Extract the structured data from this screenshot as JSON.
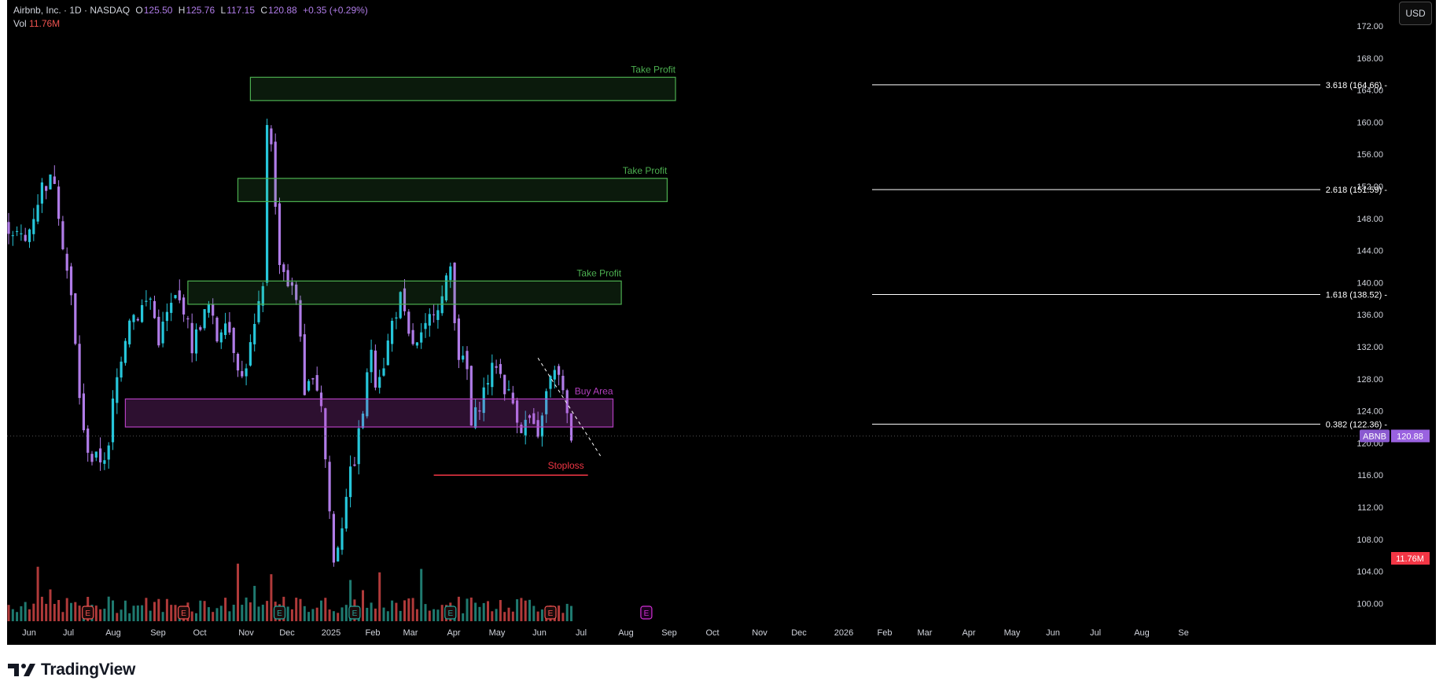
{
  "header": {
    "symbol": "Airbnb, Inc. · 1D · NASDAQ",
    "o_label": "O",
    "o_value": "125.50",
    "h_label": "H",
    "h_value": "125.76",
    "l_label": "L",
    "l_value": "117.15",
    "c_label": "C",
    "c_value": "120.88",
    "change": "+0.35 (+0.29%)",
    "vol_label": "Vol",
    "vol_value": "11.76M"
  },
  "currency_button": "USD",
  "footer": {
    "brand": "TradingView"
  },
  "colors": {
    "background": "#000000",
    "up_candle": "#26c6da",
    "down_candle": "#b07ce8",
    "volume_up": "#1f7a70",
    "volume_down": "#b03a3a",
    "take_profit": "#4caf50",
    "buy_area": "#b43fc0",
    "stoploss": "#f23645",
    "earnings": "#ef5350",
    "earnings_future": "#d22fd6"
  },
  "chart_data": {
    "type": "candlestick",
    "title": "Airbnb, Inc. · 1D · NASDAQ",
    "y_ticks": [
      "172.00",
      "168.00",
      "164.00",
      "160.00",
      "156.00",
      "152.00",
      "148.00",
      "144.00",
      "140.00",
      "136.00",
      "132.00",
      "128.00",
      "124.00",
      "120.00",
      "116.00",
      "112.00",
      "108.00",
      "104.00",
      "100.00"
    ],
    "y_range": [
      98,
      174
    ],
    "x_ticks": [
      "Jun",
      "Jul",
      "Aug",
      "Sep",
      "Oct",
      "Nov",
      "Dec",
      "2025",
      "Feb",
      "Mar",
      "Apr",
      "May",
      "Jun",
      "Jul",
      "Aug",
      "Sep",
      "Oct",
      "Nov",
      "Dec",
      "2026",
      "Feb",
      "Mar",
      "Apr",
      "May",
      "Jun",
      "Jul",
      "Aug",
      "Se"
    ],
    "last_price": {
      "symbol": "ABNB",
      "value": "120.88",
      "price": 120.88
    },
    "volume_label": "11.76M",
    "price_path": [
      [
        0,
        147
      ],
      [
        4,
        145
      ],
      [
        8,
        152
      ],
      [
        11,
        153
      ],
      [
        13,
        145
      ],
      [
        15,
        138
      ],
      [
        16,
        132
      ],
      [
        17,
        126
      ],
      [
        18,
        121
      ],
      [
        20,
        118
      ],
      [
        22,
        118
      ],
      [
        24,
        119
      ],
      [
        25,
        125
      ],
      [
        27,
        131
      ],
      [
        29,
        136
      ],
      [
        31,
        136
      ],
      [
        32,
        137
      ],
      [
        34,
        138
      ],
      [
        36,
        133
      ],
      [
        38,
        136
      ],
      [
        40,
        138
      ],
      [
        42,
        137
      ],
      [
        44,
        132
      ],
      [
        46,
        135
      ],
      [
        48,
        137
      ],
      [
        50,
        133
      ],
      [
        52,
        136
      ],
      [
        54,
        132
      ],
      [
        56,
        128
      ],
      [
        58,
        132
      ],
      [
        61,
        139
      ],
      [
        62,
        160
      ],
      [
        63,
        158
      ],
      [
        64,
        149
      ],
      [
        65,
        143
      ],
      [
        67,
        140
      ],
      [
        69,
        138
      ],
      [
        70,
        134
      ],
      [
        71,
        125
      ],
      [
        73,
        129
      ],
      [
        75,
        125
      ],
      [
        76,
        118
      ],
      [
        78,
        105
      ],
      [
        80,
        110
      ],
      [
        81,
        114
      ],
      [
        83,
        118
      ],
      [
        85,
        124
      ],
      [
        87,
        132
      ],
      [
        88,
        128
      ],
      [
        90,
        130
      ],
      [
        92,
        135
      ],
      [
        94,
        138
      ],
      [
        96,
        133
      ],
      [
        98,
        132
      ],
      [
        100,
        134
      ],
      [
        102,
        137
      ],
      [
        104,
        138
      ],
      [
        106,
        142
      ],
      [
        107,
        136
      ],
      [
        108,
        131
      ],
      [
        110,
        129
      ],
      [
        111,
        122
      ],
      [
        113,
        125
      ],
      [
        115,
        128
      ],
      [
        117,
        130
      ],
      [
        119,
        127
      ],
      [
        121,
        125
      ],
      [
        123,
        122
      ],
      [
        125,
        123
      ],
      [
        127,
        120
      ],
      [
        128,
        124
      ],
      [
        130,
        128
      ],
      [
        132,
        129
      ],
      [
        134,
        123
      ],
      [
        135,
        120.88
      ]
    ],
    "fib_levels": [
      {
        "label": "3.618 (164.66) -",
        "value": 164.66
      },
      {
        "label": "2.618 (151.59) -",
        "value": 151.59
      },
      {
        "label": "1.618 (138.52) -",
        "value": 138.52
      },
      {
        "label": "0.382 (122.36) -",
        "value": 122.36
      }
    ],
    "zones": [
      {
        "label": "Take Profit",
        "top": 165.6,
        "bottom": 162.7,
        "kind": "take_profit",
        "start": 58,
        "end": 160
      },
      {
        "label": "Take Profit",
        "top": 153.0,
        "bottom": 150.1,
        "kind": "take_profit",
        "start": 55,
        "end": 158
      },
      {
        "label": "Take Profit",
        "top": 140.2,
        "bottom": 137.3,
        "kind": "take_profit",
        "start": 43,
        "end": 147
      },
      {
        "label": "Buy Area",
        "top": 125.5,
        "bottom": 122.0,
        "kind": "buy_area",
        "start": 28,
        "end": 145
      }
    ],
    "stoploss": {
      "label": "Stoploss",
      "value": 116.0,
      "start": 102,
      "end": 139
    },
    "trendline": {
      "from": [
        127,
        130.6
      ],
      "to": [
        142,
        118.4
      ]
    },
    "earnings_markers": [
      {
        "label": "E",
        "x": 19,
        "kind": "past_red"
      },
      {
        "label": "E",
        "x": 42,
        "kind": "past_red"
      },
      {
        "label": "E",
        "x": 65,
        "kind": "past_teal"
      },
      {
        "label": "E",
        "x": 83,
        "kind": "past_teal"
      },
      {
        "label": "E",
        "x": 106,
        "kind": "past_teal"
      },
      {
        "label": "E",
        "x": 130,
        "kind": "past_red"
      },
      {
        "label": "E",
        "x": 153,
        "kind": "future"
      }
    ]
  }
}
